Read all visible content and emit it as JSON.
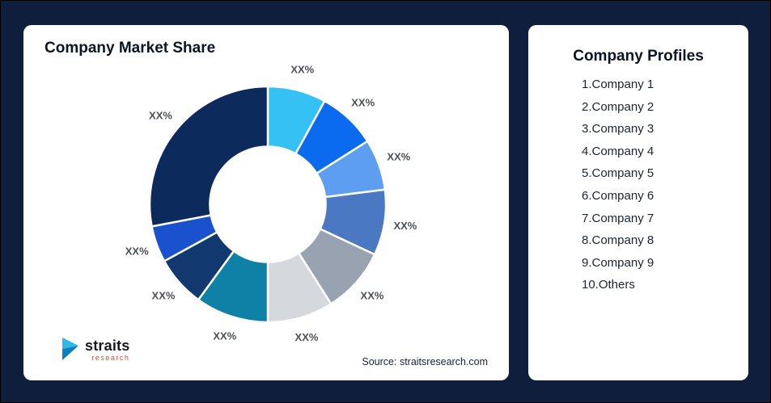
{
  "background_color": "#101e3e",
  "chart_card": {
    "title": "Company Market Share",
    "source": "Source: straitsresearch.com",
    "logo": {
      "name": "straits",
      "sub": "research",
      "icon": "straits-research-logo-icon",
      "icon_colors": {
        "top": "#2eb9ea",
        "bottom": "#0e7fc0"
      }
    }
  },
  "profiles": {
    "title": "Company Profiles",
    "items": [
      "1.Company 1",
      "2.Company 2",
      "3.Company 3",
      "4.Company 4",
      "5.Company 5",
      "6.Company 6",
      "7.Company 7",
      "8.Company 8",
      "9.Company 9",
      "10.Others"
    ]
  },
  "chart_data": {
    "type": "pie",
    "subtype": "donut",
    "title": "Company Market Share",
    "labels": [
      "XX%",
      "XX%",
      "XX%",
      "XX%",
      "XX%",
      "XX%",
      "XX%",
      "XX%",
      "XX%",
      "XX%"
    ],
    "values": [
      8,
      8,
      7,
      9,
      9,
      9,
      10,
      7,
      5,
      28
    ],
    "colors": [
      "#35C1F3",
      "#0B6BEF",
      "#5E9EF0",
      "#4A78C2",
      "#98A2B0",
      "#D5D9DE",
      "#0F80A6",
      "#11386F",
      "#1A51CC",
      "#0D2A5C"
    ],
    "start_angle_deg": 0,
    "direction": "clockwise",
    "hole_ratio": 0.49,
    "slice_border_color": "#ffffff",
    "legend": "none",
    "source": "Source: straitsresearch.com"
  }
}
